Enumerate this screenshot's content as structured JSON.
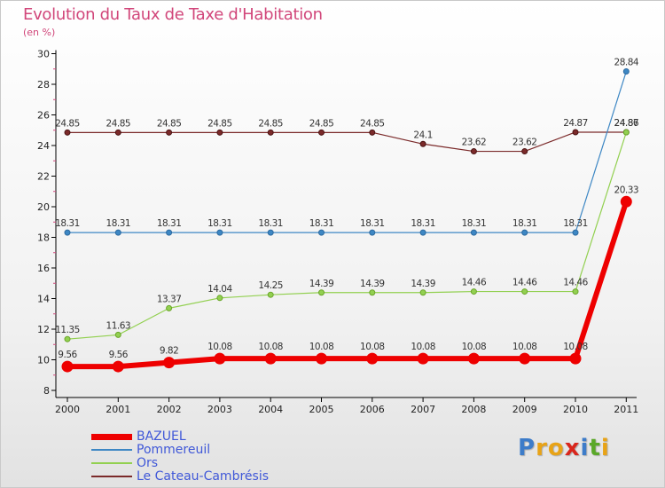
{
  "title": "Evolution du Taux de Taxe d'Habitation",
  "subtitle": "(en %)",
  "logo": [
    "P",
    "r",
    "o",
    "x",
    "i",
    "t",
    "i"
  ],
  "chart_data": {
    "type": "line",
    "title": "Evolution du Taux de Taxe d'Habitation",
    "ylabel": "(en %)",
    "xlabel": "",
    "ylim": [
      8,
      30
    ],
    "yticks": [
      8,
      10,
      12,
      14,
      16,
      18,
      20,
      22,
      24,
      26,
      28,
      30
    ],
    "grid": false,
    "legend_position": "bottom-left",
    "categories": [
      "2000",
      "2001",
      "2002",
      "2003",
      "2004",
      "2005",
      "2006",
      "2007",
      "2008",
      "2009",
      "2010",
      "2011"
    ],
    "series": [
      {
        "name": "Le Cateau-Cambrésis",
        "color": "#7b2a2a",
        "values": [
          24.85,
          24.85,
          24.85,
          24.85,
          24.85,
          24.85,
          24.85,
          24.1,
          23.62,
          23.62,
          24.87,
          24.87
        ],
        "labels": [
          "24.85",
          "24.85",
          "24.85",
          "24.85",
          "24.85",
          "24.85",
          "24.85",
          "24.1",
          "23.62",
          "23.62",
          "24.87",
          "24.87"
        ]
      },
      {
        "name": "Pommereuil",
        "color": "#3d87c4",
        "values": [
          18.31,
          18.31,
          18.31,
          18.31,
          18.31,
          18.31,
          18.31,
          18.31,
          18.31,
          18.31,
          18.31,
          28.84
        ],
        "labels": [
          "18.31",
          "18.31",
          "18.31",
          "18.31",
          "18.31",
          "18.31",
          "18.31",
          "18.31",
          "18.31",
          "18.31",
          "18.31",
          "28.84"
        ]
      },
      {
        "name": "Ors",
        "color": "#92d050",
        "values": [
          11.35,
          11.63,
          13.37,
          14.04,
          14.25,
          14.39,
          14.39,
          14.39,
          14.46,
          14.46,
          14.46,
          24.86
        ],
        "labels": [
          "11.35",
          "11.63",
          "13.37",
          "14.04",
          "14.25",
          "14.39",
          "14.39",
          "14.39",
          "14.46",
          "14.46",
          "14.46",
          "24.86"
        ]
      },
      {
        "name": "BAZUEL",
        "color": "#ee0000",
        "values": [
          9.56,
          9.56,
          9.82,
          10.08,
          10.08,
          10.08,
          10.08,
          10.08,
          10.08,
          10.08,
          10.08,
          20.33
        ],
        "labels": [
          "9.56",
          "9.56",
          "9.82",
          "10.08",
          "10.08",
          "10.08",
          "10.08",
          "10.08",
          "10.08",
          "10.08",
          "10.08",
          "20.33"
        ]
      }
    ],
    "legend": [
      "BAZUEL",
      "Pommereuil",
      "Ors",
      "Le Cateau-Cambrésis"
    ]
  },
  "colors": {
    "title": "#d1467a",
    "legend_text": "#4058d8",
    "axis": "#000000"
  }
}
